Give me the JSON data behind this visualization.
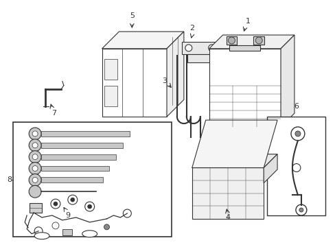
{
  "background_color": "#ffffff",
  "line_color": "#333333",
  "figsize": [
    4.89,
    3.6
  ],
  "dpi": 100,
  "tool_color": "#c8c8c8",
  "box_fill": "#ffffff",
  "gray_fill": "#e8e8e8"
}
